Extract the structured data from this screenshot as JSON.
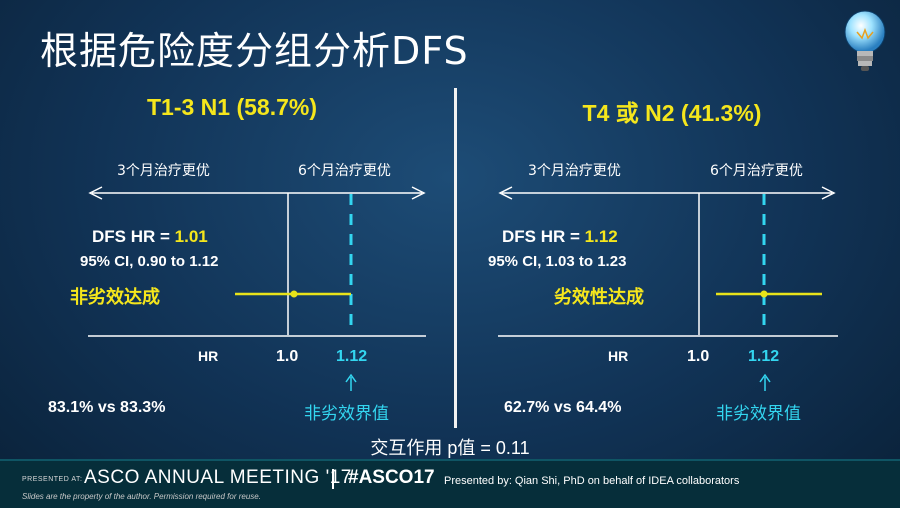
{
  "title": "根据危险度分组分析DFS",
  "left_panel": {
    "subgroup_title": "T1-3 N1 (58.7%)",
    "arrow_left_label": "3个月治疗更优",
    "arrow_right_label": "6个月治疗更优",
    "hr_prefix": "DFS HR = ",
    "hr_value": "1.01",
    "ci": "95% CI, 0.90 to 1.12",
    "result_status": "非劣效达成",
    "axis_hr_label": "HR",
    "axis_ref": "1.0",
    "axis_margin": "1.12",
    "rates": "83.1% vs 83.3%",
    "margin_label": "非劣效界值"
  },
  "right_panel": {
    "subgroup_title": "T4 或 N2 (41.3%)",
    "arrow_left_label": "3个月治疗更优",
    "arrow_right_label": "6个月治疗更优",
    "hr_prefix": "DFS HR = ",
    "hr_value": "1.12",
    "ci": "95% CI, 1.03 to 1.23",
    "result_status": "劣效性达成",
    "axis_hr_label": "HR",
    "axis_ref": "1.0",
    "axis_margin": "1.12",
    "rates": "62.7% vs 64.4%",
    "margin_label": "非劣效界值"
  },
  "interaction_text": "交互作用 p值 = 0.11",
  "footer": {
    "presented_at": "PRESENTED AT:",
    "meeting": "ASCO ANNUAL MEETING '17",
    "hashtag": "#ASCO17",
    "disclaimer": "Slides are the property of the author. Permission required for reuse.",
    "presenter": "Presented by: Qian Shi, PhD on behalf of IDEA collaborators"
  },
  "colors": {
    "background": "#113356",
    "highlight_yellow": "#f5e61c",
    "margin_cyan": "#33d6f0",
    "text_white": "#ffffff",
    "footer_bg": "#062e3a"
  },
  "icons": [
    "lightbulb-icon"
  ]
}
